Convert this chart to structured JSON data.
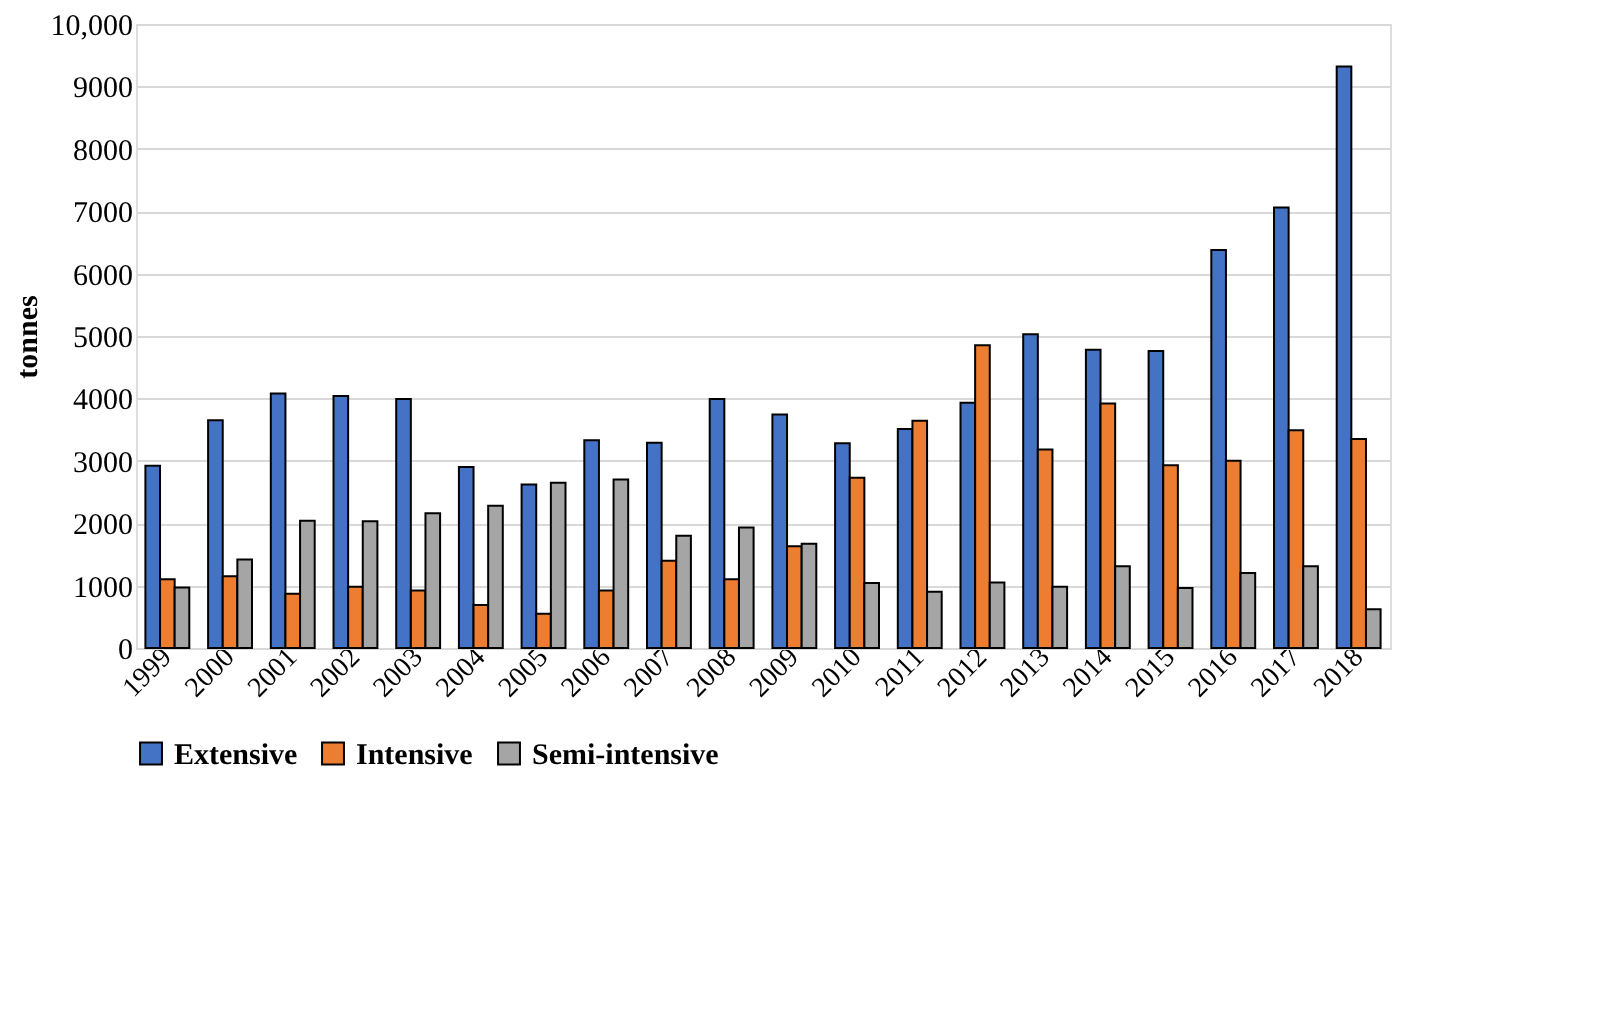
{
  "chart_data": {
    "type": "bar",
    "ylabel": "tonnes",
    "categories": [
      "1999",
      "2000",
      "2001",
      "2002",
      "2003",
      "2004",
      "2005",
      "2006",
      "2007",
      "2008",
      "2009",
      "2010",
      "2011",
      "2012",
      "2013",
      "2014",
      "2015",
      "2016",
      "2017",
      "2018"
    ],
    "series": [
      {
        "name": "Extensive",
        "color": "#4472c4",
        "values": [
          2920,
          3650,
          4080,
          4040,
          3990,
          2900,
          2620,
          3330,
          3290,
          3990,
          3740,
          3280,
          3510,
          3930,
          5030,
          4780,
          4760,
          6380,
          7060,
          9320
        ]
      },
      {
        "name": "Intensive",
        "color": "#ed7d31",
        "values": [
          1100,
          1150,
          870,
          980,
          920,
          690,
          550,
          920,
          1400,
          1100,
          1630,
          2730,
          3640,
          4850,
          3180,
          3920,
          2930,
          3000,
          3490,
          3350
        ]
      },
      {
        "name": "Semi-intensive",
        "color": "#a5a5a5",
        "values": [
          970,
          1420,
          2040,
          2030,
          2160,
          2280,
          2650,
          2700,
          1800,
          1930,
          1670,
          1040,
          900,
          1050,
          980,
          1310,
          960,
          1200,
          1310,
          620
        ]
      }
    ],
    "ylim": [
      0,
      10000
    ],
    "yticks": [
      0,
      1000,
      2000,
      3000,
      4000,
      5000,
      6000,
      7000,
      8000,
      9000,
      {
        "value": 10000,
        "label": "10,000"
      }
    ],
    "grid": "y",
    "legend": "bottom"
  }
}
